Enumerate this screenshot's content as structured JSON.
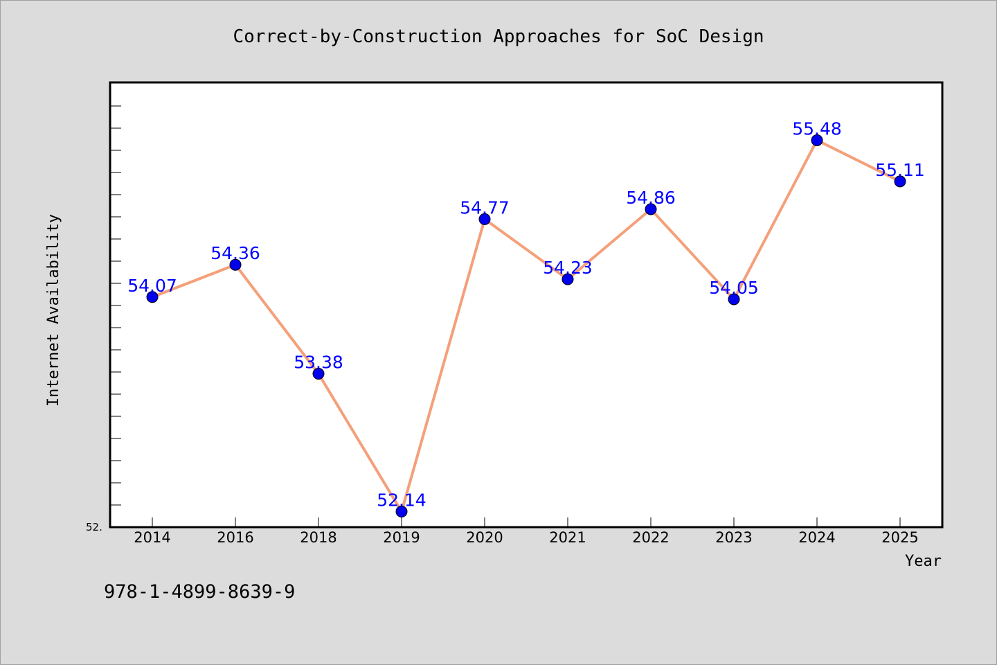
{
  "chart_data": {
    "type": "line",
    "title": "Correct-by-Construction Approaches for SoC Design",
    "xlabel": "Year",
    "ylabel": "Internet Availability",
    "categories": [
      "2014",
      "2016",
      "2018",
      "2019",
      "2020",
      "2021",
      "2022",
      "2023",
      "2024",
      "2025"
    ],
    "series": [
      {
        "values": [
          54.07,
          54.36,
          53.38,
          52.14,
          54.77,
          54.23,
          54.86,
          54.05,
          55.48,
          55.11
        ],
        "labels": [
          "54.07",
          "54.36",
          "53.38",
          "52.14",
          "54.77",
          "54.23",
          "54.86",
          "54.05",
          "55.48",
          "55.11"
        ],
        "line_color": "#f4a07a",
        "marker_color": "#0000ee",
        "label_color": "#0000ff"
      }
    ],
    "y_tick_label": "52.",
    "ylim": [
      52.0,
      56.0
    ],
    "grid": false,
    "legend": false
  },
  "footer": {
    "isbn": "978-1-4899-8639-9"
  }
}
